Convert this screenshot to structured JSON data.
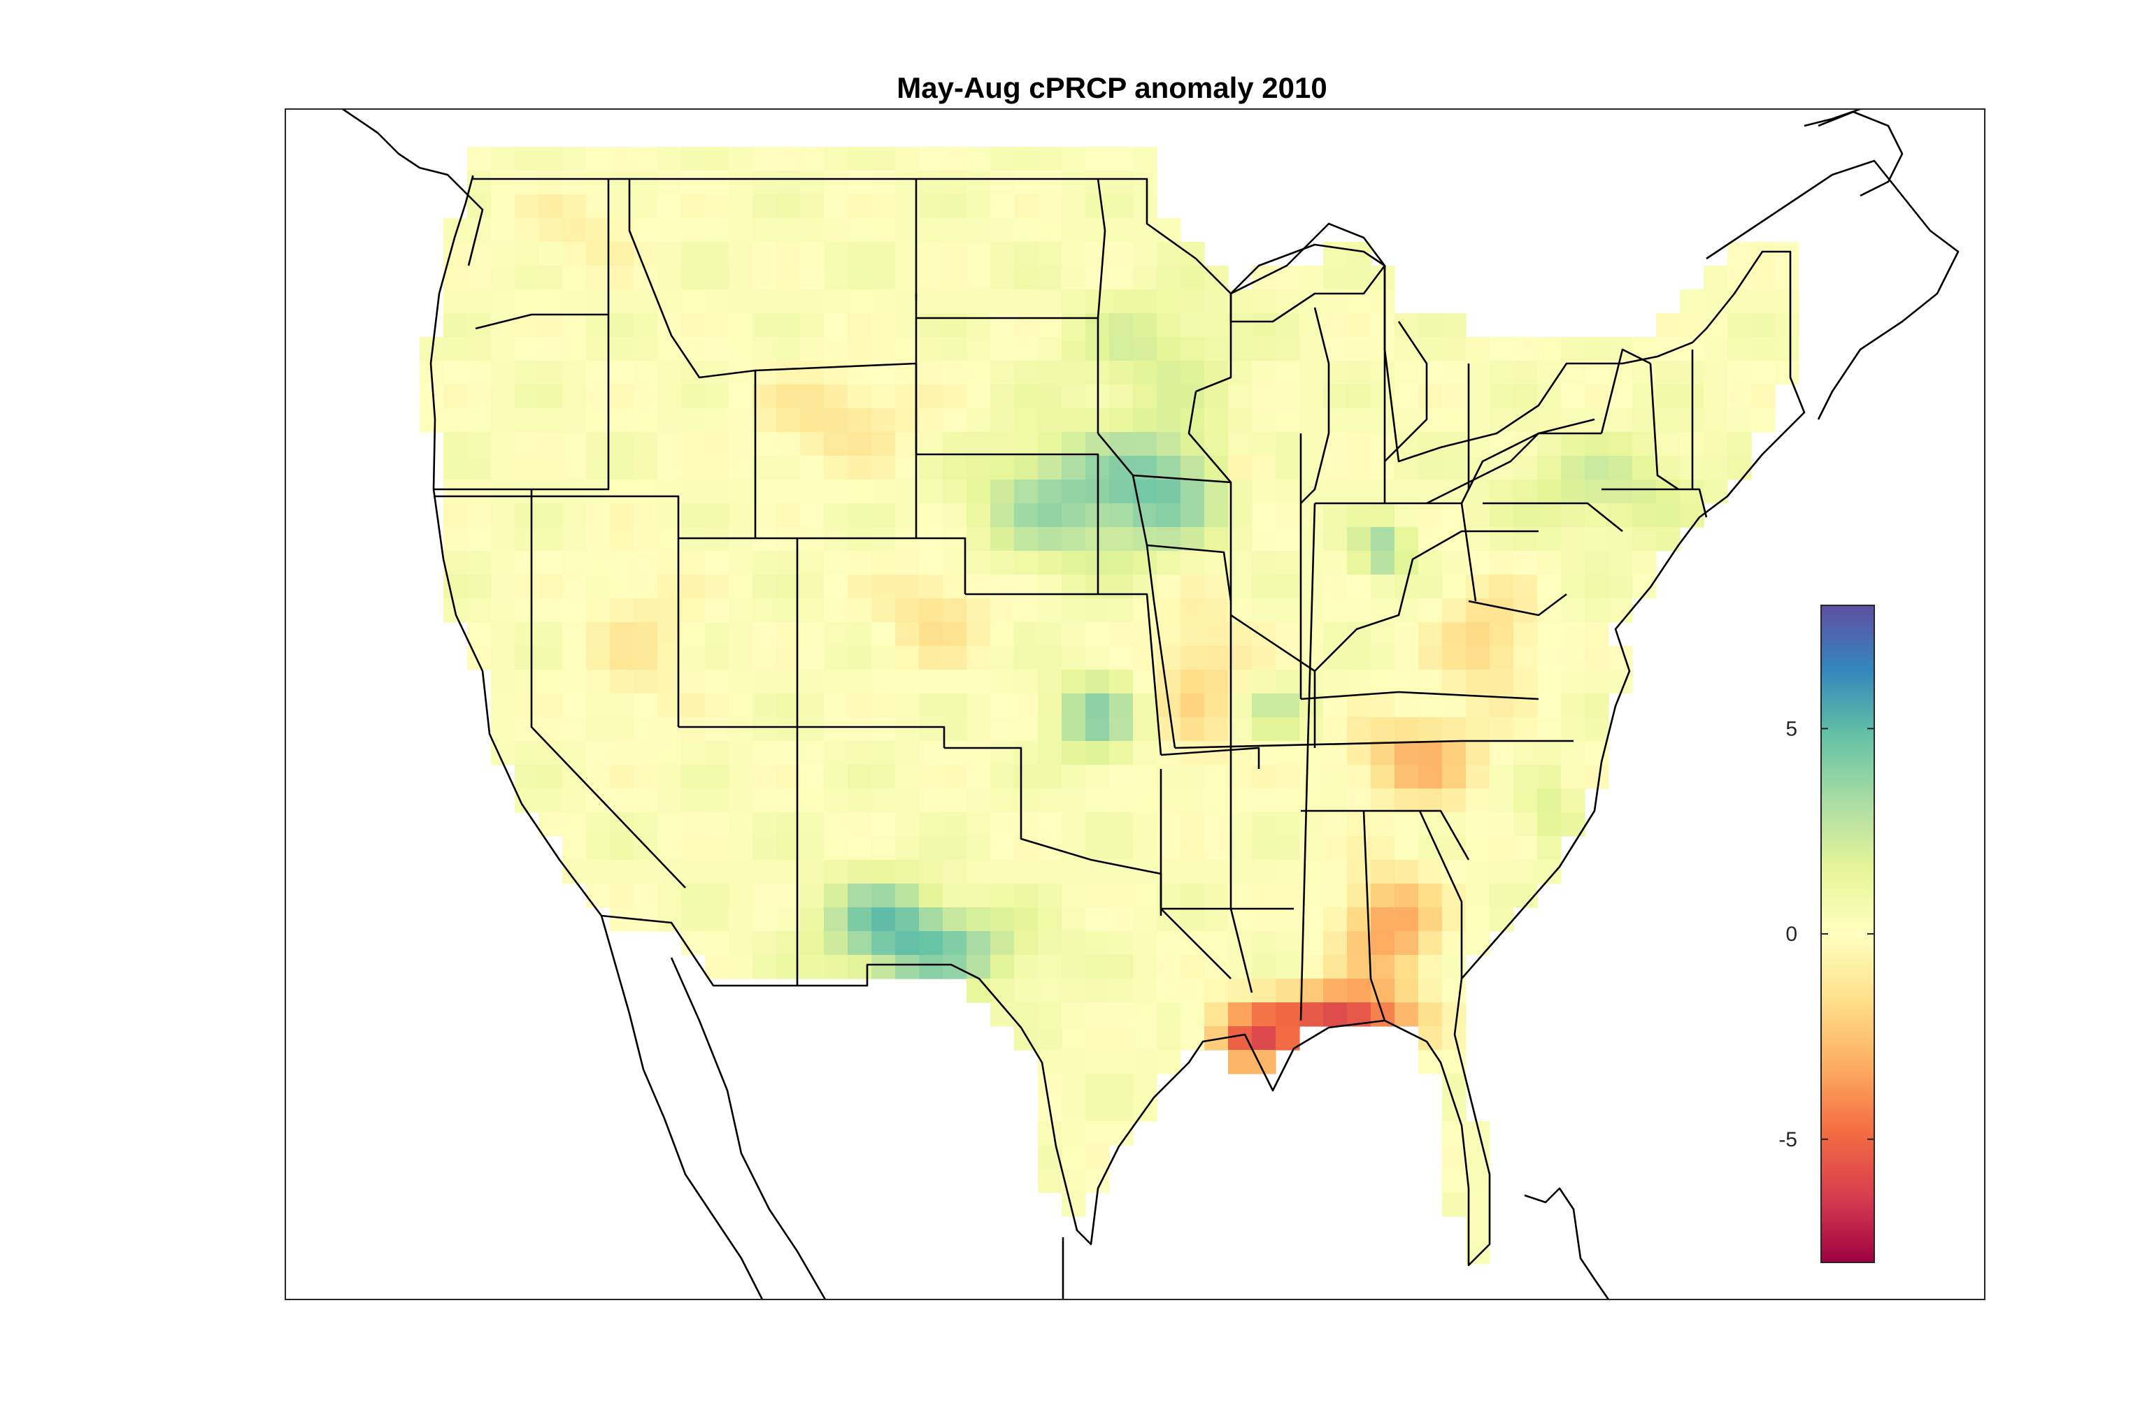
{
  "chart_data": {
    "type": "heatmap",
    "title": "May-Aug cPRCP anomaly 2010",
    "colorbar": {
      "ticks": [
        5,
        0,
        -5
      ],
      "tick_labels": [
        "5",
        "0",
        "-5"
      ],
      "range": [
        -8,
        8
      ],
      "colormap": "spectral",
      "colors": [
        "#9e0142",
        "#d53e4f",
        "#f46d43",
        "#fdae61",
        "#fee08b",
        "#ffffbf",
        "#e6f598",
        "#abdda4",
        "#66c2a5",
        "#3288bd",
        "#5e4fa2"
      ]
    },
    "xlabel": "",
    "ylabel": ""
  }
}
